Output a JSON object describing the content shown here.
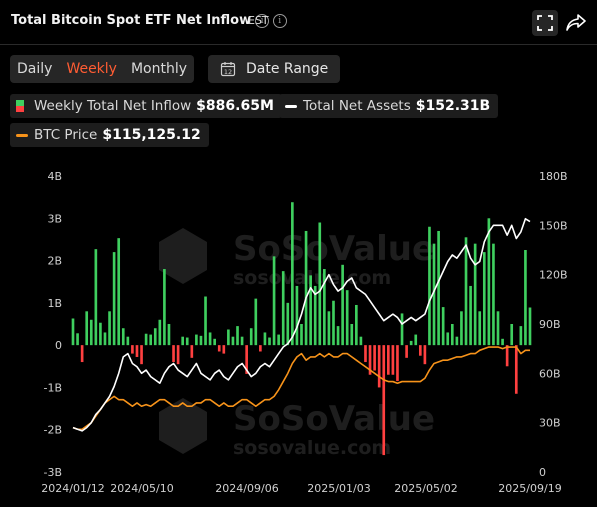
{
  "header": {
    "title": "Total Bitcoin Spot ETF Net Inflow",
    "timezone": "EST"
  },
  "range_tabs": [
    {
      "label": "Daily",
      "active": false
    },
    {
      "label": "Weekly",
      "active": true
    },
    {
      "label": "Monthly",
      "active": false
    }
  ],
  "date_range": {
    "label": "Date Range"
  },
  "legend": {
    "inflow": {
      "name": "Weekly Total Net Inflow",
      "value": "$886.65M"
    },
    "assets": {
      "name": "Total Net Assets",
      "value": "$152.31B"
    },
    "price": {
      "name": "BTC Price",
      "value": "$115,125.12"
    }
  },
  "watermark": {
    "brand": "SoSoValue",
    "site": "sosovalue.com"
  },
  "colors": {
    "positive": "#3fcf5f",
    "negative": "#ff4040",
    "assets_line": "#ffffff",
    "price_line": "#f7931a",
    "background": "#000000"
  },
  "chart_data": {
    "type": "bar",
    "title": "Total Bitcoin Spot ETF Net Inflow",
    "x_tick_labels": [
      "2024/01/12",
      "2024/05/10",
      "2024/09/06",
      "2025/01/03",
      "2025/05/02",
      "2025/09/19"
    ],
    "y_left": {
      "label": "",
      "ylim": [
        -3,
        4
      ],
      "tick_labels": [
        "4B",
        "3B",
        "2B",
        "1B",
        "0",
        "-1B",
        "-2B",
        "-3B"
      ]
    },
    "y_right": {
      "label": "",
      "ylim": [
        0,
        180
      ],
      "tick_labels": [
        "180B",
        "150B",
        "120B",
        "90B",
        "60B",
        "30B",
        "0"
      ]
    },
    "grid": false,
    "series": [
      {
        "name": "Weekly Total Net Inflow",
        "axis": "left",
        "unit": "B",
        "values": [
          0.63,
          0.28,
          -0.4,
          0.8,
          0.6,
          2.27,
          0.53,
          0.3,
          0.8,
          2.2,
          2.53,
          0.4,
          0.2,
          -0.2,
          -0.28,
          -0.45,
          0.27,
          0.25,
          0.4,
          0.6,
          1.8,
          0.5,
          -0.4,
          -0.45,
          0.2,
          0.18,
          -0.3,
          0.25,
          0.22,
          1.15,
          0.3,
          0.15,
          -0.15,
          -0.2,
          0.37,
          0.2,
          0.45,
          0.2,
          -0.68,
          0.4,
          1.1,
          -0.15,
          0.3,
          0.18,
          2.1,
          0.25,
          1.75,
          1.0,
          3.38,
          1.4,
          0.5,
          2.7,
          1.65,
          1.4,
          2.9,
          1.8,
          0.8,
          1.05,
          0.45,
          1.9,
          1.3,
          0.5,
          0.95,
          0.2,
          -0.4,
          -0.7,
          -0.6,
          -1.0,
          -2.6,
          -0.7,
          -0.7,
          -0.85,
          0.75,
          -0.3,
          0.1,
          0.25,
          -0.25,
          -0.45,
          2.8,
          2.4,
          2.7,
          0.9,
          0.3,
          0.5,
          0.2,
          0.8,
          2.55,
          1.4,
          2.4,
          0.8,
          2.2,
          3.0,
          2.4,
          0.8,
          0.15,
          -0.5,
          0.5,
          -1.15,
          0.45,
          2.25,
          0.89
        ]
      },
      {
        "name": "Total Net Assets",
        "axis": "right",
        "unit": "B",
        "values": [
          27,
          26,
          25,
          27,
          30,
          35,
          38,
          42,
          46,
          52,
          60,
          70,
          72,
          66,
          64,
          60,
          62,
          58,
          56,
          54,
          60,
          64,
          66,
          62,
          60,
          58,
          62,
          66,
          60,
          58,
          56,
          60,
          62,
          58,
          56,
          60,
          64,
          66,
          62,
          58,
          60,
          64,
          66,
          64,
          68,
          72,
          76,
          78,
          82,
          88,
          96,
          106,
          112,
          108,
          110,
          115,
          120,
          114,
          110,
          112,
          116,
          118,
          112,
          110,
          108,
          104,
          100,
          96,
          92,
          94,
          96,
          94,
          90,
          92,
          94,
          92,
          94,
          96,
          104,
          110,
          116,
          122,
          128,
          132,
          130,
          134,
          138,
          130,
          126,
          128,
          140,
          146,
          150,
          150,
          150,
          144,
          150,
          142,
          146,
          154,
          152.31
        ]
      },
      {
        "name": "BTC Price",
        "axis": "right",
        "unit": "B-scale",
        "values": [
          27,
          26,
          26,
          28,
          30,
          34,
          38,
          42,
          44,
          46,
          44,
          44,
          42,
          40,
          42,
          40,
          41,
          40,
          42,
          44,
          44,
          42,
          40,
          40,
          42,
          40,
          40,
          42,
          42,
          44,
          44,
          42,
          40,
          42,
          40,
          40,
          42,
          44,
          44,
          42,
          40,
          42,
          44,
          44,
          46,
          50,
          55,
          60,
          66,
          70,
          72,
          68,
          70,
          70,
          72,
          70,
          72,
          70,
          70,
          72,
          72,
          70,
          68,
          66,
          64,
          62,
          60,
          58,
          56,
          55,
          55,
          54,
          55,
          55,
          55,
          55,
          55,
          57,
          62,
          66,
          67,
          68,
          68,
          69,
          70,
          70,
          71,
          72,
          72,
          74,
          75,
          76,
          76,
          76,
          75,
          76,
          76,
          76,
          72,
          74,
          74
        ]
      }
    ]
  }
}
